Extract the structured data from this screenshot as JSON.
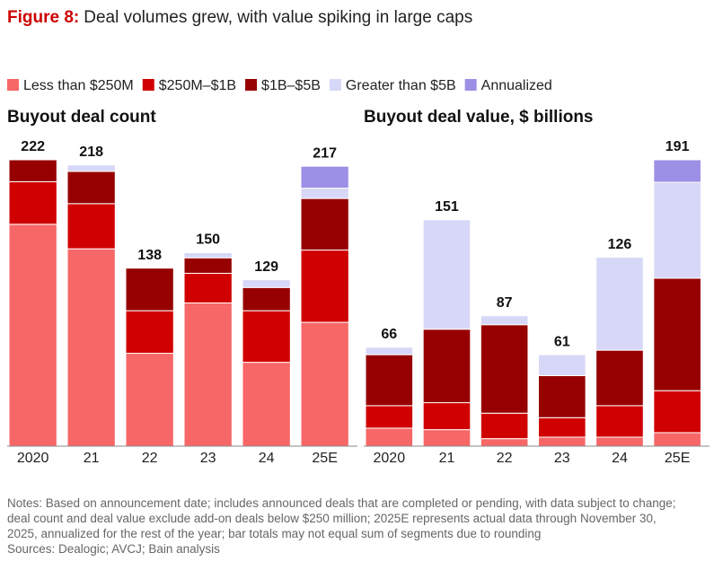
{
  "figure_label": "Figure 8:",
  "figure_title": "Deal volumes grew, with value spiking in large caps",
  "chart_data": [
    {
      "type": "bar",
      "stacked": true,
      "title": "Buyout deal count",
      "categories": [
        "2020",
        "21",
        "22",
        "23",
        "24",
        "25E"
      ],
      "totals": [
        222,
        218,
        138,
        150,
        129,
        217
      ],
      "series": [
        {
          "name": "Less than $250M",
          "color": "#f76767",
          "values": [
            172,
            153,
            72,
            111,
            65,
            96
          ]
        },
        {
          "name": "$250M–$1B",
          "color": "#d00000",
          "values": [
            33,
            35,
            33,
            23,
            40,
            56
          ]
        },
        {
          "name": "$1B–$5B",
          "color": "#960000",
          "values": [
            17,
            25,
            33,
            12,
            18,
            40
          ]
        },
        {
          "name": "Greater than $5B",
          "color": "#d7d7f7",
          "values": [
            null,
            5,
            null,
            4,
            6,
            8
          ]
        },
        {
          "name": "Annualized",
          "color": "#9c8fe6",
          "values": [
            null,
            null,
            null,
            null,
            null,
            17
          ]
        }
      ]
    },
    {
      "type": "bar",
      "stacked": true,
      "title": "Buyout deal value, $ billions",
      "categories": [
        "2020",
        "21",
        "22",
        "23",
        "24",
        "25E"
      ],
      "totals": [
        66,
        151,
        87,
        61,
        126,
        191
      ],
      "series": [
        {
          "name": "Less than $250M",
          "color": "#f76767",
          "values": [
            12,
            11,
            5,
            6,
            6,
            9
          ]
        },
        {
          "name": "$250M–$1B",
          "color": "#d00000",
          "values": [
            15,
            18,
            17,
            13,
            21,
            28
          ]
        },
        {
          "name": "$1B–$5B",
          "color": "#960000",
          "values": [
            34,
            49,
            59,
            28,
            37,
            75
          ]
        },
        {
          "name": "Greater than $5B",
          "color": "#d7d7f7",
          "values": [
            5,
            73,
            6,
            14,
            62,
            64
          ]
        },
        {
          "name": "Annualized",
          "color": "#9c8fe6",
          "values": [
            null,
            null,
            null,
            null,
            null,
            15
          ]
        }
      ]
    }
  ],
  "notes": "Notes: Based on announcement date; includes announced deals that are completed or pending, with data subject to change; deal count and deal value exclude add-on deals below $250 million; 2025E represents actual data through November 30, 2025, annualized for the rest of the year; bar totals may not equal sum of segments due to rounding",
  "sources": "Sources: Dealogic; AVCJ; Bain analysis"
}
